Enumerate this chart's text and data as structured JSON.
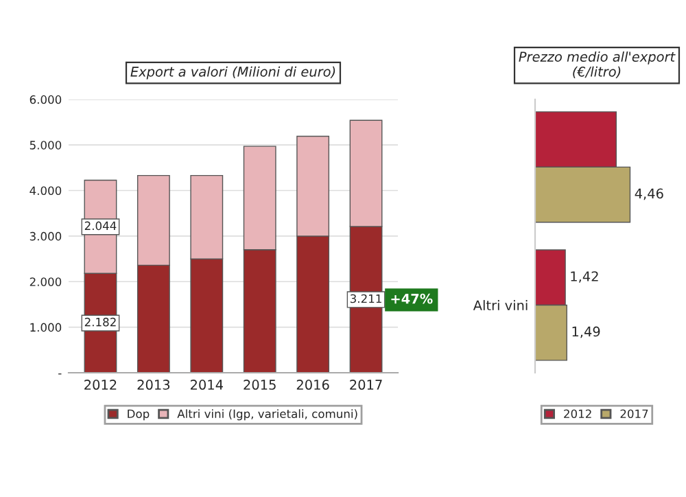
{
  "chart_data": [
    {
      "type": "bar",
      "title": "Export a valori (Milioni di euro)",
      "stacked": true,
      "categories": [
        "2012",
        "2013",
        "2014",
        "2015",
        "2016",
        "2017"
      ],
      "series": [
        {
          "name": "Dop",
          "color": "#9b2a2a",
          "values": [
            2182,
            2360,
            2500,
            2700,
            3000,
            3211
          ],
          "value_labels": [
            "2.182",
            null,
            null,
            null,
            null,
            "3.211"
          ]
        },
        {
          "name": "Altri vini (Igp, varietali, comuni)",
          "color": "#e8b4b8",
          "values": [
            2044,
            1970,
            1830,
            2270,
            2190,
            2330
          ],
          "value_labels": [
            "2.044",
            null,
            null,
            null,
            null,
            null
          ]
        }
      ],
      "ylim": [
        0,
        6000
      ],
      "yticks": [
        {
          "value": 0,
          "label": "-"
        },
        {
          "value": 1000,
          "label": "1.000"
        },
        {
          "value": 2000,
          "label": "2.000"
        },
        {
          "value": 3000,
          "label": "3.000"
        },
        {
          "value": 4000,
          "label": "4.000"
        },
        {
          "value": 5000,
          "label": "5.000"
        },
        {
          "value": 6000,
          "label": "6.000"
        }
      ],
      "grid": "y",
      "legend": "bottom",
      "annotations": [
        {
          "text": "+47%",
          "x": "2017",
          "y": 1600
        }
      ]
    },
    {
      "type": "bar",
      "title": "Prezzo medio all'export\n(€/litro)",
      "orientation": "horizontal",
      "categories": [
        null,
        "Altri vini"
      ],
      "series": [
        {
          "name": "2012",
          "color": "#b5223a",
          "values": [
            3.81,
            1.42
          ],
          "value_labels": [
            null,
            "1,42"
          ]
        },
        {
          "name": "2017",
          "color": "#b8a86a",
          "values": [
            4.46,
            1.49
          ],
          "value_labels": [
            "4,46",
            "1,49"
          ]
        }
      ],
      "legend": "bottom"
    }
  ]
}
